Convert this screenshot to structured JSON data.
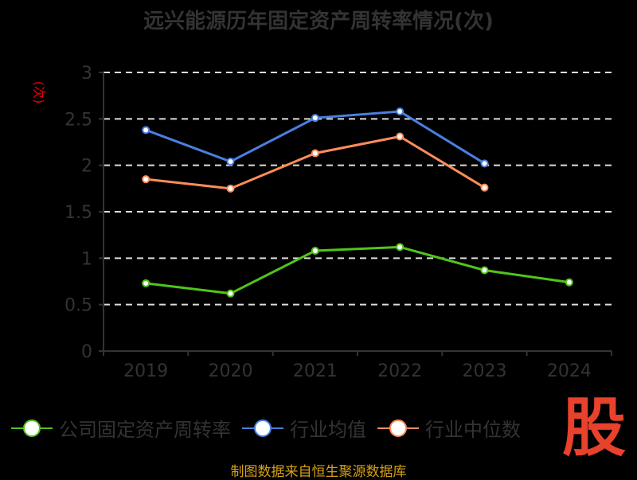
{
  "chart_data": {
    "type": "line",
    "title": "远兴能源历年固定资产周转率情况(次)",
    "ylabel": "(次)",
    "xlabel": "",
    "categories": [
      "2019",
      "2020",
      "2021",
      "2022",
      "2023",
      "2024"
    ],
    "yticks": [
      "0",
      "0.5",
      "1",
      "1.5",
      "2",
      "2.5",
      "3"
    ],
    "ylim": [
      0,
      3
    ],
    "grid": true,
    "legend_position": "bottom",
    "series": [
      {
        "name": "公司固定资产周转率",
        "color": "#52c41a",
        "values": [
          0.73,
          0.62,
          1.08,
          1.12,
          0.87,
          0.74
        ]
      },
      {
        "name": "行业均值",
        "color": "#4a7fe0",
        "values": [
          2.38,
          2.04,
          2.51,
          2.58,
          2.02,
          null
        ]
      },
      {
        "name": "行业中位数",
        "color": "#ff8c5a",
        "values": [
          1.85,
          1.75,
          2.13,
          2.31,
          1.76,
          null
        ]
      }
    ]
  },
  "source": "制图数据来自恒生聚源数据库",
  "logo_text": "股"
}
